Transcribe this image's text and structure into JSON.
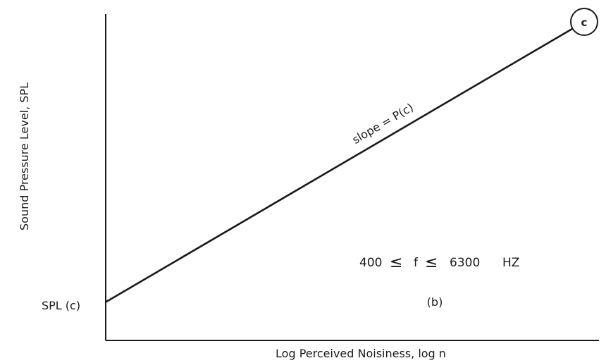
{
  "diagram": {
    "xlabel": "Log Perceived Noisiness, log n",
    "ylabel": "Sound Pressure Level, SPL",
    "intercept_label": "SPL (c)",
    "slope_label": "slope = P(c)",
    "frequency_range": {
      "low": "400",
      "relation": "≤",
      "variable": "f",
      "high": "6300",
      "unit": "HZ"
    },
    "panel_label": "(b)",
    "endpoint_marker": "c"
  }
}
